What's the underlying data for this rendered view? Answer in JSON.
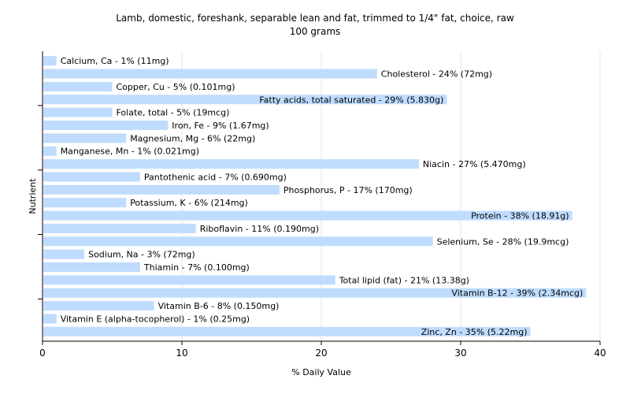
{
  "chart_data": {
    "type": "bar",
    "orientation": "horizontal",
    "title": "Lamb, domestic, foreshank, separable lean and fat, trimmed to 1/4\" fat, choice, raw",
    "subtitle": "100 grams",
    "xlabel": "% Daily Value",
    "ylabel": "Nutrient",
    "xlim": [
      0,
      40
    ],
    "xticks": [
      0,
      10,
      20,
      30,
      40
    ],
    "grid": true,
    "bar_color": "#bfdcff",
    "categories": [
      "Calcium, Ca",
      "Cholesterol",
      "Copper, Cu",
      "Fatty acids, total saturated",
      "Folate, total",
      "Iron, Fe",
      "Magnesium, Mg",
      "Manganese, Mn",
      "Niacin",
      "Pantothenic acid",
      "Phosphorus, P",
      "Potassium, K",
      "Protein",
      "Riboflavin",
      "Selenium, Se",
      "Sodium, Na",
      "Thiamin",
      "Total lipid (fat)",
      "Vitamin B-12",
      "Vitamin B-6",
      "Vitamin E (alpha-tocopherol)",
      "Zinc, Zn"
    ],
    "values": [
      1,
      24,
      5,
      29,
      5,
      9,
      6,
      1,
      27,
      7,
      17,
      6,
      38,
      11,
      28,
      3,
      7,
      21,
      39,
      8,
      1,
      35
    ],
    "labels": [
      "Calcium, Ca - 1% (11mg)",
      "Cholesterol - 24% (72mg)",
      "Copper, Cu - 5% (0.101mg)",
      "Fatty acids, total saturated - 29% (5.830g)",
      "Folate, total - 5% (19mcg)",
      "Iron, Fe - 9% (1.67mg)",
      "Magnesium, Mg - 6% (22mg)",
      "Manganese, Mn - 1% (0.021mg)",
      "Niacin - 27% (5.470mg)",
      "Pantothenic acid - 7% (0.690mg)",
      "Phosphorus, P - 17% (170mg)",
      "Potassium, K - 6% (214mg)",
      "Protein - 38% (18.91g)",
      "Riboflavin - 11% (0.190mg)",
      "Selenium, Se - 28% (19.9mcg)",
      "Sodium, Na - 3% (72mg)",
      "Thiamin - 7% (0.100mg)",
      "Total lipid (fat) - 21% (13.38g)",
      "Vitamin B-12 - 39% (2.34mcg)",
      "Vitamin B-6 - 8% (0.150mg)",
      "Vitamin E (alpha-tocopherol) - 1% (0.25mg)",
      "Zinc, Zn - 35% (5.22mg)"
    ]
  }
}
